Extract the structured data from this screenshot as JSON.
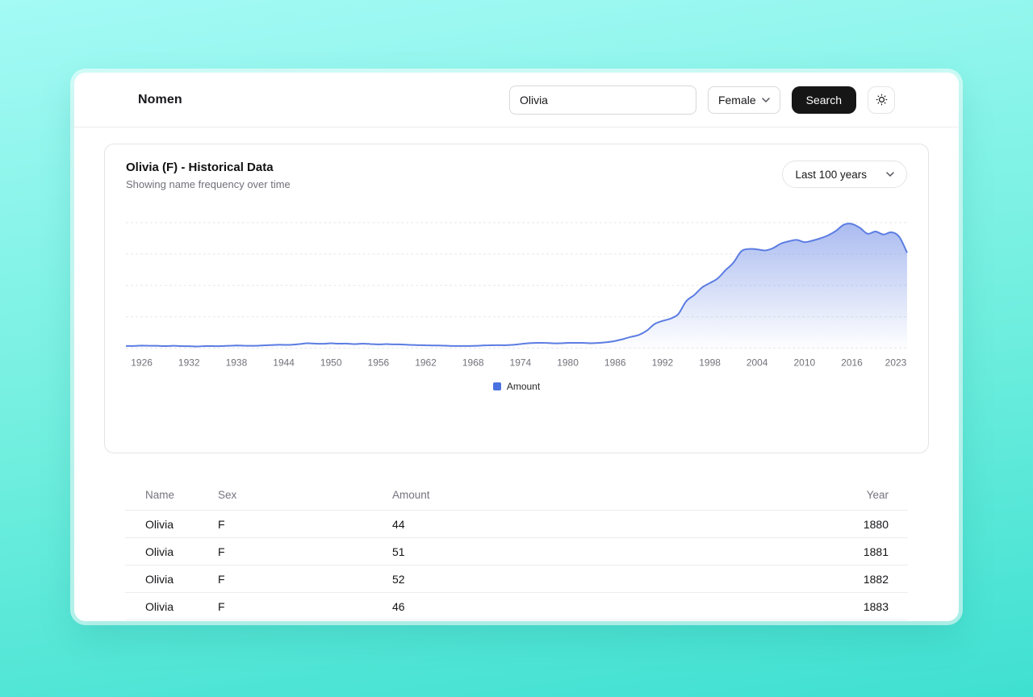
{
  "app": {
    "brand": "Nomen"
  },
  "header": {
    "search_value": "Olivia",
    "sex_value": "Female",
    "search_label": "Search"
  },
  "card": {
    "title": "Olivia (F) - Historical Data",
    "subtitle": "Showing name frequency over time",
    "range_value": "Last 100 years"
  },
  "chart_data": {
    "type": "area",
    "title": "Olivia (F) - Historical Data",
    "xlabel": "",
    "ylabel": "",
    "x_range": [
      1924,
      2023
    ],
    "x_ticks": [
      1926,
      1932,
      1938,
      1944,
      1950,
      1956,
      1962,
      1968,
      1974,
      1980,
      1986,
      1992,
      1998,
      2004,
      2010,
      2016,
      2023
    ],
    "ylim": [
      0,
      20000
    ],
    "grid": "horizontal-dashed",
    "legend_position": "bottom",
    "series": [
      {
        "name": "Amount",
        "values": [
          360,
          360,
          420,
          390,
          380,
          330,
          380,
          330,
          320,
          280,
          340,
          330,
          330,
          380,
          430,
          400,
          380,
          420,
          490,
          540,
          540,
          550,
          660,
          780,
          720,
          710,
          780,
          720,
          730,
          660,
          730,
          670,
          610,
          660,
          610,
          600,
          540,
          490,
          480,
          430,
          420,
          370,
          360,
          360,
          370,
          420,
          480,
          490,
          480,
          540,
          660,
          780,
          840,
          850,
          790,
          780,
          840,
          850,
          840,
          790,
          840,
          960,
          1150,
          1450,
          1810,
          2110,
          2780,
          3860,
          4350,
          4710,
          5430,
          7480,
          8450,
          9660,
          10380,
          11110,
          12430,
          13640,
          15450,
          15810,
          15750,
          15570,
          15940,
          16660,
          17020,
          17260,
          16900,
          17140,
          17500,
          17990,
          18710,
          19680,
          19800,
          19190,
          18230,
          18590,
          18110,
          18470,
          17750,
          15210
        ]
      }
    ],
    "colors": {
      "line": "#5b7ce2",
      "fill": "#5b7ce2",
      "legend_swatch": "#4a72e0",
      "grid": "#e5e7eb",
      "tick_text": "#71717a"
    }
  },
  "table": {
    "columns": [
      "Name",
      "Sex",
      "Amount",
      "Year"
    ],
    "rows": [
      [
        "Olivia",
        "F",
        "44",
        "1880"
      ],
      [
        "Olivia",
        "F",
        "51",
        "1881"
      ],
      [
        "Olivia",
        "F",
        "52",
        "1882"
      ],
      [
        "Olivia",
        "F",
        "46",
        "1883"
      ]
    ]
  }
}
